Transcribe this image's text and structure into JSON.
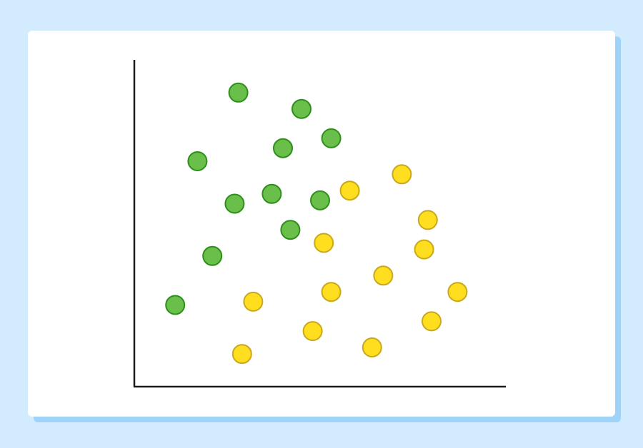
{
  "chart_data": {
    "type": "scatter",
    "title": "",
    "xlabel": "",
    "ylabel": "",
    "xlim": [
      0,
      10
    ],
    "ylim": [
      0,
      10
    ],
    "grid": false,
    "legend": "none",
    "ticks": "none",
    "series": [
      {
        "color": "#6abf4b",
        "stroke": "#2e8f1a",
        "points": [
          {
            "x": 2.8,
            "y": 9.0
          },
          {
            "x": 4.5,
            "y": 8.5
          },
          {
            "x": 5.3,
            "y": 7.6
          },
          {
            "x": 4.0,
            "y": 7.3
          },
          {
            "x": 1.7,
            "y": 6.9
          },
          {
            "x": 3.7,
            "y": 5.9
          },
          {
            "x": 2.7,
            "y": 5.6
          },
          {
            "x": 5.0,
            "y": 5.7
          },
          {
            "x": 4.2,
            "y": 4.8
          },
          {
            "x": 2.1,
            "y": 4.0
          },
          {
            "x": 1.1,
            "y": 2.5
          }
        ]
      },
      {
        "color": "#ffde1f",
        "stroke": "#c9a81c",
        "points": [
          {
            "x": 7.2,
            "y": 6.5
          },
          {
            "x": 5.8,
            "y": 6.0
          },
          {
            "x": 7.9,
            "y": 5.1
          },
          {
            "x": 5.1,
            "y": 4.4
          },
          {
            "x": 7.8,
            "y": 4.2
          },
          {
            "x": 6.7,
            "y": 3.4
          },
          {
            "x": 5.3,
            "y": 2.9
          },
          {
            "x": 8.7,
            "y": 2.9
          },
          {
            "x": 3.2,
            "y": 2.6
          },
          {
            "x": 8.0,
            "y": 2.0
          },
          {
            "x": 4.8,
            "y": 1.7
          },
          {
            "x": 6.4,
            "y": 1.2
          },
          {
            "x": 2.9,
            "y": 1.0
          }
        ]
      }
    ]
  }
}
